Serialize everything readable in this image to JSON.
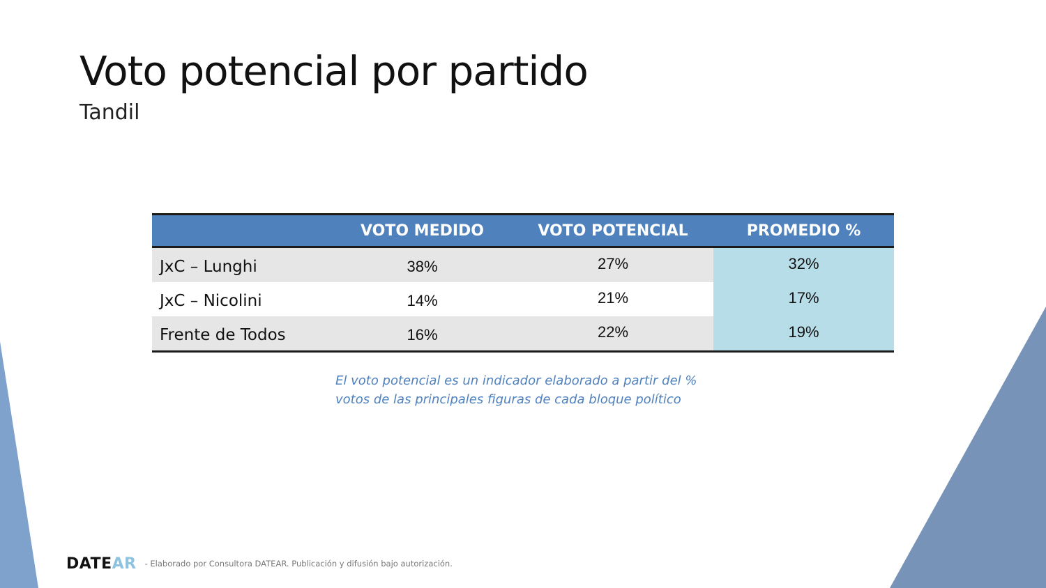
{
  "slide": {
    "title": "Voto potencial por partido",
    "subtitle": "Tandil"
  },
  "table": {
    "headers": [
      "",
      "VOTO MEDIDO",
      "VOTO POTENCIAL",
      "PROMEDIO %"
    ],
    "rows": [
      {
        "party": "JxC – Lunghi",
        "voto_medido": "38%",
        "voto_potencial": "27%",
        "promedio": "32%"
      },
      {
        "party": "JxC – Nicolini",
        "voto_medido": "14%",
        "voto_potencial": "21%",
        "promedio": "17%"
      },
      {
        "party": "Frente de Todos",
        "voto_medido": "16%",
        "voto_potencial": "22%",
        "promedio": "19%"
      }
    ]
  },
  "note": {
    "line1": "El voto potencial es un indicador elaborado a partir del %",
    "line2": "votos de las principales figuras de cada bloque político"
  },
  "footer": {
    "logo_part1": "DATE",
    "logo_part2": "AR",
    "credit": "- Elaborado por Consultora DATEAR. Publicación y difusión bajo autorización."
  },
  "colors": {
    "header_bg": "#4f81bd",
    "promedio_bg": "#b7dde8",
    "stripe_bg": "#e6e6e6",
    "note_text": "#4f81bd",
    "decor_left": "#7fa2cc",
    "decor_right": "#7893b8",
    "logo_accent": "#8ec3e0"
  }
}
